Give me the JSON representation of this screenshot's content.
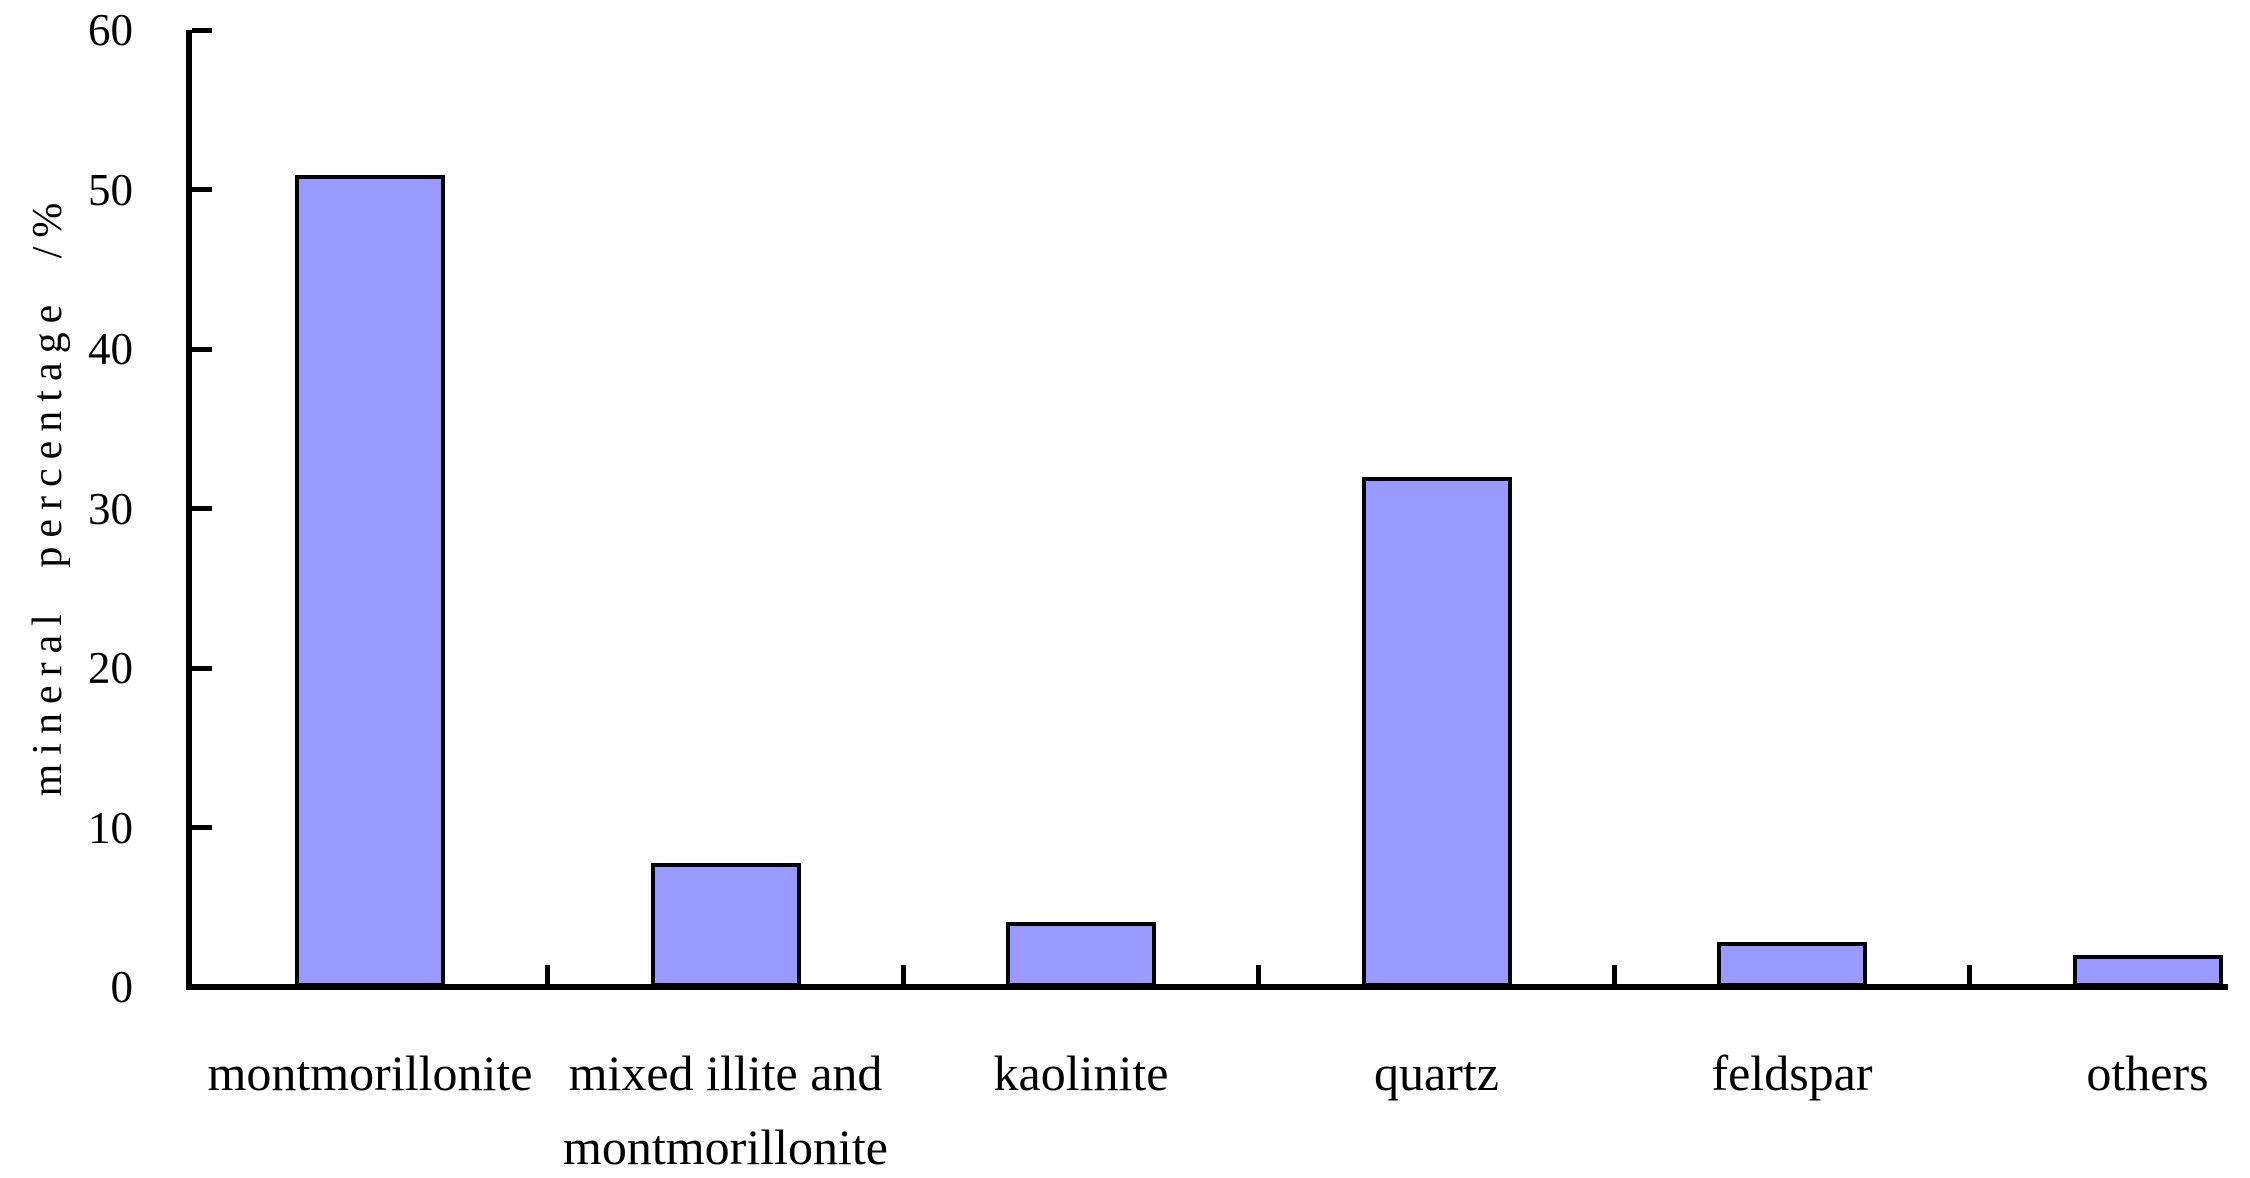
{
  "chart_data": {
    "type": "bar",
    "title": "",
    "ylabel": "mineral percentage /%",
    "xlabel": "",
    "categories": [
      "montmorillonite",
      "mixed illite and\nmontmorillonite",
      "kaolinite",
      "quartz",
      "feldspar",
      "others"
    ],
    "values": [
      50.9,
      7.8,
      4.1,
      32.0,
      2.8,
      2.0
    ],
    "ylim": [
      0,
      60
    ],
    "yticks": [
      0,
      10,
      20,
      30,
      40,
      50,
      60
    ],
    "grid": false,
    "legend_position": "none",
    "bar_color": "#9999FF",
    "bar_border_color": "#000000",
    "axis_color": "#000000",
    "text_color": "#000000"
  }
}
